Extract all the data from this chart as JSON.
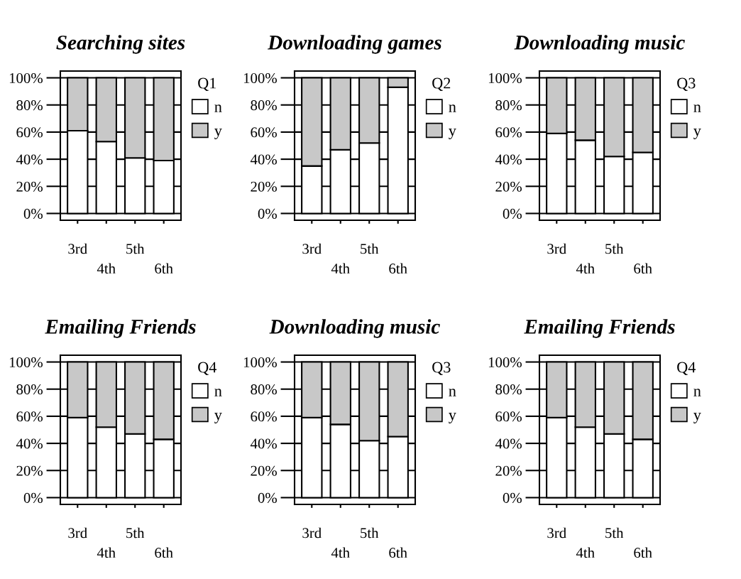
{
  "chart_data": [
    {
      "type": "bar",
      "title": "Searching sites",
      "categories": [
        "3rd",
        "4th",
        "5th",
        "6th"
      ],
      "stacked": true,
      "legend_title": "Q1",
      "legend": "top right",
      "grid": "y",
      "ylim": [
        -5,
        105
      ],
      "yticks": [
        {
          "value": 0,
          "label": "0%"
        },
        {
          "value": 20,
          "label": "20%"
        },
        {
          "value": 40,
          "label": "40%"
        },
        {
          "value": 60,
          "label": "60%"
        },
        {
          "value": 80,
          "label": "80%"
        },
        {
          "value": 100,
          "label": "100%"
        }
      ],
      "series": [
        {
          "name": "n",
          "color": "#ffffff",
          "values": [
            61,
            53,
            41,
            39
          ]
        },
        {
          "name": "y",
          "color": "#c8c8c8",
          "values": [
            39,
            47,
            59,
            61
          ]
        }
      ]
    },
    {
      "type": "bar",
      "title": "Downloading games",
      "categories": [
        "3rd",
        "4th",
        "5th",
        "6th"
      ],
      "stacked": true,
      "legend_title": "Q2",
      "legend": "top right",
      "grid": "y",
      "ylim": [
        -5,
        105
      ],
      "yticks": [
        {
          "value": 0,
          "label": "0%"
        },
        {
          "value": 20,
          "label": "20%"
        },
        {
          "value": 40,
          "label": "40%"
        },
        {
          "value": 60,
          "label": "60%"
        },
        {
          "value": 80,
          "label": "80%"
        },
        {
          "value": 100,
          "label": "100%"
        }
      ],
      "series": [
        {
          "name": "n",
          "color": "#ffffff",
          "values": [
            35,
            47,
            52,
            93
          ]
        },
        {
          "name": "y",
          "color": "#c8c8c8",
          "values": [
            65,
            53,
            48,
            7
          ]
        }
      ]
    },
    {
      "type": "bar",
      "title": "Downloading music",
      "categories": [
        "3rd",
        "4th",
        "5th",
        "6th"
      ],
      "stacked": true,
      "legend_title": "Q3",
      "legend": "top right",
      "grid": "y",
      "ylim": [
        -5,
        105
      ],
      "yticks": [
        {
          "value": 0,
          "label": "0%"
        },
        {
          "value": 20,
          "label": "20%"
        },
        {
          "value": 40,
          "label": "40%"
        },
        {
          "value": 60,
          "label": "60%"
        },
        {
          "value": 80,
          "label": "80%"
        },
        {
          "value": 100,
          "label": "100%"
        }
      ],
      "series": [
        {
          "name": "n",
          "color": "#ffffff",
          "values": [
            59,
            54,
            42,
            45
          ]
        },
        {
          "name": "y",
          "color": "#c8c8c8",
          "values": [
            41,
            46,
            58,
            55
          ]
        }
      ]
    },
    {
      "type": "bar",
      "title": "Emailing Friends",
      "categories": [
        "3rd",
        "4th",
        "5th",
        "6th"
      ],
      "stacked": true,
      "legend_title": "Q4",
      "legend": "top right",
      "grid": "y",
      "ylim": [
        -5,
        105
      ],
      "yticks": [
        {
          "value": 0,
          "label": "0%"
        },
        {
          "value": 20,
          "label": "20%"
        },
        {
          "value": 40,
          "label": "40%"
        },
        {
          "value": 60,
          "label": "60%"
        },
        {
          "value": 80,
          "label": "80%"
        },
        {
          "value": 100,
          "label": "100%"
        }
      ],
      "series": [
        {
          "name": "n",
          "color": "#ffffff",
          "values": [
            59,
            52,
            47,
            43
          ]
        },
        {
          "name": "y",
          "color": "#c8c8c8",
          "values": [
            41,
            48,
            53,
            57
          ]
        }
      ]
    },
    {
      "type": "bar",
      "title": "Downloading music",
      "categories": [
        "3rd",
        "4th",
        "5th",
        "6th"
      ],
      "stacked": true,
      "legend_title": "Q3",
      "legend": "top right",
      "grid": "y",
      "ylim": [
        -5,
        105
      ],
      "yticks": [
        {
          "value": 0,
          "label": "0%"
        },
        {
          "value": 20,
          "label": "20%"
        },
        {
          "value": 40,
          "label": "40%"
        },
        {
          "value": 60,
          "label": "60%"
        },
        {
          "value": 80,
          "label": "80%"
        },
        {
          "value": 100,
          "label": "100%"
        }
      ],
      "series": [
        {
          "name": "n",
          "color": "#ffffff",
          "values": [
            59,
            54,
            42,
            45
          ]
        },
        {
          "name": "y",
          "color": "#c8c8c8",
          "values": [
            41,
            46,
            58,
            55
          ]
        }
      ]
    },
    {
      "type": "bar",
      "title": "Emailing Friends",
      "categories": [
        "3rd",
        "4th",
        "5th",
        "6th"
      ],
      "stacked": true,
      "legend_title": "Q4",
      "legend": "top right",
      "grid": "y",
      "ylim": [
        -5,
        105
      ],
      "yticks": [
        {
          "value": 0,
          "label": "0%"
        },
        {
          "value": 20,
          "label": "20%"
        },
        {
          "value": 40,
          "label": "40%"
        },
        {
          "value": 60,
          "label": "60%"
        },
        {
          "value": 80,
          "label": "80%"
        },
        {
          "value": 100,
          "label": "100%"
        }
      ],
      "series": [
        {
          "name": "n",
          "color": "#ffffff",
          "values": [
            59,
            52,
            47,
            43
          ]
        },
        {
          "name": "y",
          "color": "#c8c8c8",
          "values": [
            41,
            48,
            53,
            57
          ]
        }
      ]
    }
  ]
}
